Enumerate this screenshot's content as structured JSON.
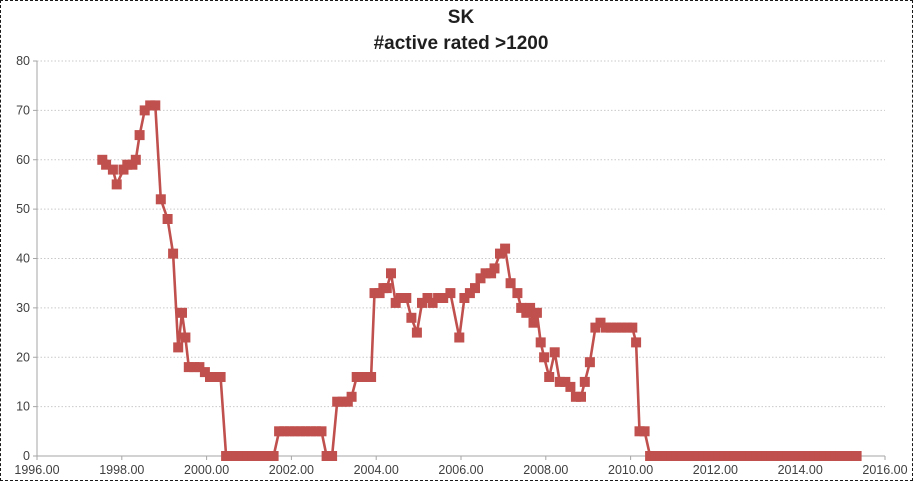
{
  "frame": {
    "background": "#ffffff",
    "border_color": "#1a1a1a",
    "border_style": "dashed"
  },
  "chart": {
    "title": "SK",
    "subtitle": "#active rated >1200",
    "series_color": "#c0504d",
    "axis_color": "#a6a6a6",
    "grid_color": "#c9c9c9",
    "tick_label_color": "#404040",
    "title_color": "#1f1f1f"
  },
  "chart_data": {
    "type": "line",
    "title": "SK",
    "subtitle": "#active rated >1200",
    "xlabel": "",
    "ylabel": "",
    "xlim": [
      1996,
      2016
    ],
    "ylim": [
      0,
      80
    ],
    "x_ticks": [
      1996,
      1998,
      2000,
      2002,
      2004,
      2006,
      2008,
      2010,
      2012,
      2014,
      2016
    ],
    "x_tick_labels": [
      "1996.00",
      "1998.00",
      "2000.00",
      "2002.00",
      "2004.00",
      "2006.00",
      "2008.00",
      "2010.00",
      "2012.00",
      "2014.00",
      "2016.00"
    ],
    "y_ticks": [
      0,
      10,
      20,
      30,
      40,
      50,
      60,
      70,
      80
    ],
    "y_tick_labels": [
      "0",
      "10",
      "20",
      "30",
      "40",
      "50",
      "60",
      "70",
      "80"
    ],
    "grid": "horizontal dotted gridlines",
    "legend": "none",
    "marker": "square",
    "series_name": "#active rated >1200",
    "points": [
      [
        1997.54,
        60
      ],
      [
        1997.63,
        59
      ],
      [
        1997.79,
        58
      ],
      [
        1997.88,
        55
      ],
      [
        1998.04,
        58
      ],
      [
        1998.13,
        59
      ],
      [
        1998.25,
        59
      ],
      [
        1998.33,
        60
      ],
      [
        1998.42,
        65
      ],
      [
        1998.54,
        70
      ],
      [
        1998.67,
        71
      ],
      [
        1998.79,
        71
      ],
      [
        1998.92,
        52
      ],
      [
        1999.08,
        48
      ],
      [
        1999.21,
        41
      ],
      [
        1999.33,
        22
      ],
      [
        1999.42,
        29
      ],
      [
        1999.5,
        24
      ],
      [
        1999.58,
        18
      ],
      [
        1999.71,
        18
      ],
      [
        1999.83,
        18
      ],
      [
        1999.96,
        17
      ],
      [
        2000.08,
        16
      ],
      [
        2000.21,
        16
      ],
      [
        2000.33,
        16
      ],
      [
        2000.46,
        0
      ],
      [
        2000.58,
        0
      ],
      [
        2000.71,
        0
      ],
      [
        2000.83,
        0
      ],
      [
        2000.96,
        0
      ],
      [
        2001.08,
        0
      ],
      [
        2001.21,
        0
      ],
      [
        2001.33,
        0
      ],
      [
        2001.46,
        0
      ],
      [
        2001.58,
        0
      ],
      [
        2001.71,
        5
      ],
      [
        2001.83,
        5
      ],
      [
        2001.96,
        5
      ],
      [
        2002.08,
        5
      ],
      [
        2002.21,
        5
      ],
      [
        2002.33,
        5
      ],
      [
        2002.46,
        5
      ],
      [
        2002.58,
        5
      ],
      [
        2002.71,
        5
      ],
      [
        2002.83,
        0
      ],
      [
        2002.96,
        0
      ],
      [
        2003.08,
        11
      ],
      [
        2003.21,
        11
      ],
      [
        2003.33,
        11
      ],
      [
        2003.42,
        12
      ],
      [
        2003.54,
        16
      ],
      [
        2003.67,
        16
      ],
      [
        2003.79,
        16
      ],
      [
        2003.88,
        16
      ],
      [
        2003.96,
        33
      ],
      [
        2004.08,
        33
      ],
      [
        2004.17,
        34
      ],
      [
        2004.25,
        34
      ],
      [
        2004.35,
        37
      ],
      [
        2004.46,
        31
      ],
      [
        2004.58,
        32
      ],
      [
        2004.71,
        32
      ],
      [
        2004.83,
        28
      ],
      [
        2004.96,
        25
      ],
      [
        2005.08,
        31
      ],
      [
        2005.21,
        32
      ],
      [
        2005.33,
        31
      ],
      [
        2005.46,
        32
      ],
      [
        2005.58,
        32
      ],
      [
        2005.75,
        33
      ],
      [
        2005.96,
        24
      ],
      [
        2006.08,
        32
      ],
      [
        2006.21,
        33
      ],
      [
        2006.33,
        34
      ],
      [
        2006.46,
        36
      ],
      [
        2006.58,
        37
      ],
      [
        2006.71,
        37
      ],
      [
        2006.79,
        38
      ],
      [
        2006.92,
        41
      ],
      [
        2007.04,
        42
      ],
      [
        2007.17,
        35
      ],
      [
        2007.33,
        33
      ],
      [
        2007.42,
        30
      ],
      [
        2007.54,
        29
      ],
      [
        2007.63,
        30
      ],
      [
        2007.71,
        27
      ],
      [
        2007.79,
        29
      ],
      [
        2007.88,
        23
      ],
      [
        2007.96,
        20
      ],
      [
        2008.08,
        16
      ],
      [
        2008.21,
        21
      ],
      [
        2008.33,
        15
      ],
      [
        2008.46,
        15
      ],
      [
        2008.58,
        14
      ],
      [
        2008.71,
        12
      ],
      [
        2008.83,
        12
      ],
      [
        2008.92,
        15
      ],
      [
        2009.04,
        19
      ],
      [
        2009.17,
        26
      ],
      [
        2009.29,
        27
      ],
      [
        2009.42,
        26
      ],
      [
        2009.54,
        26
      ],
      [
        2009.67,
        26
      ],
      [
        2009.79,
        26
      ],
      [
        2009.92,
        26
      ],
      [
        2010.04,
        26
      ],
      [
        2010.13,
        23
      ],
      [
        2010.21,
        5
      ],
      [
        2010.33,
        5
      ],
      [
        2010.46,
        0
      ],
      [
        2010.58,
        0
      ],
      [
        2010.71,
        0
      ],
      [
        2010.83,
        0
      ],
      [
        2010.96,
        0
      ],
      [
        2011.08,
        0
      ],
      [
        2011.21,
        0
      ],
      [
        2011.33,
        0
      ],
      [
        2011.46,
        0
      ],
      [
        2011.58,
        0
      ],
      [
        2011.71,
        0
      ],
      [
        2011.83,
        0
      ],
      [
        2011.96,
        0
      ],
      [
        2012.08,
        0
      ],
      [
        2012.21,
        0
      ],
      [
        2012.33,
        0
      ],
      [
        2012.46,
        0
      ],
      [
        2012.58,
        0
      ],
      [
        2012.71,
        0
      ],
      [
        2012.83,
        0
      ],
      [
        2012.96,
        0
      ],
      [
        2013.08,
        0
      ],
      [
        2013.21,
        0
      ],
      [
        2013.33,
        0
      ],
      [
        2013.46,
        0
      ],
      [
        2013.58,
        0
      ],
      [
        2013.71,
        0
      ],
      [
        2013.83,
        0
      ],
      [
        2013.96,
        0
      ],
      [
        2014.08,
        0
      ],
      [
        2014.21,
        0
      ],
      [
        2014.33,
        0
      ],
      [
        2014.46,
        0
      ],
      [
        2014.58,
        0
      ],
      [
        2014.71,
        0
      ],
      [
        2014.83,
        0
      ],
      [
        2014.96,
        0
      ],
      [
        2015.08,
        0
      ],
      [
        2015.21,
        0
      ],
      [
        2015.33,
        0
      ]
    ]
  }
}
